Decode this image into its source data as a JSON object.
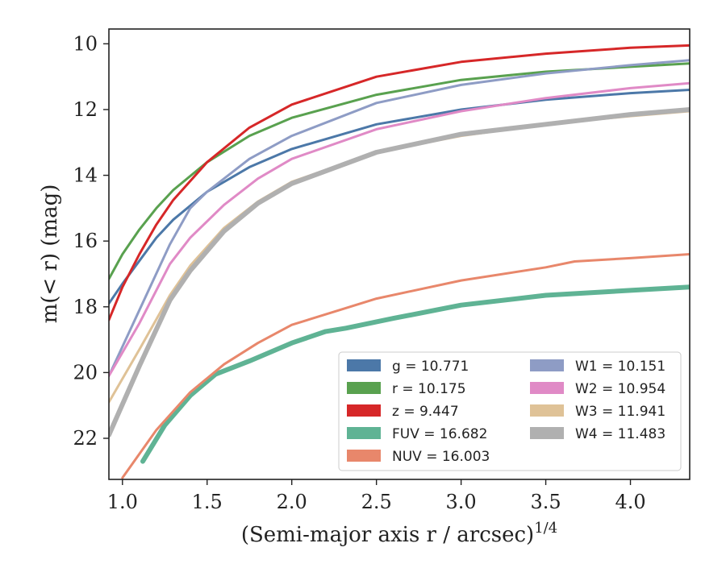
{
  "chart_data": {
    "type": "line",
    "xlabel": "(Semi-major axis r / arcsec)",
    "xlabel_superscript": "1/4",
    "ylabel": "m(< r) (mag)",
    "xlim": [
      0.92,
      4.35
    ],
    "ylim": [
      23.25,
      9.55
    ],
    "y_inverted": true,
    "grid": false,
    "legend_position": "lower-right",
    "x_ticks": [
      "1.0",
      "1.5",
      "2.0",
      "2.5",
      "3.0",
      "3.5",
      "4.0"
    ],
    "y_ticks": [
      "10",
      "12",
      "14",
      "16",
      "18",
      "20",
      "22"
    ],
    "series": [
      {
        "name": "g",
        "legend_label": "g = 10.771",
        "color": "#4c78a8",
        "x": [
          0.92,
          1.0,
          1.1,
          1.2,
          1.3,
          1.5,
          1.75,
          2.0,
          2.5,
          3.0,
          3.5,
          4.0,
          4.35
        ],
        "y": [
          17.9,
          17.3,
          16.6,
          15.9,
          15.35,
          14.5,
          13.75,
          13.2,
          12.45,
          12.0,
          11.7,
          11.5,
          11.4
        ]
      },
      {
        "name": "r",
        "legend_label": "r = 10.175",
        "color": "#59a14f",
        "x": [
          0.92,
          1.0,
          1.1,
          1.2,
          1.3,
          1.5,
          1.75,
          2.0,
          2.5,
          3.0,
          3.5,
          4.0,
          4.35
        ],
        "y": [
          17.15,
          16.4,
          15.65,
          15.0,
          14.45,
          13.6,
          12.8,
          12.25,
          11.55,
          11.1,
          10.85,
          10.7,
          10.6
        ]
      },
      {
        "name": "z",
        "legend_label": "z = 9.447",
        "color": "#d62728",
        "x": [
          0.92,
          1.0,
          1.1,
          1.2,
          1.3,
          1.5,
          1.75,
          2.0,
          2.5,
          3.0,
          3.5,
          4.0,
          4.35
        ],
        "y": [
          18.4,
          17.4,
          16.4,
          15.5,
          14.75,
          13.6,
          12.55,
          11.85,
          11.0,
          10.55,
          10.3,
          10.12,
          10.05
        ]
      },
      {
        "name": "FUV",
        "legend_label": "FUV = 16.682",
        "color": "#5fb394",
        "x": [
          1.12,
          1.25,
          1.4,
          1.55,
          1.75,
          2.0,
          2.2,
          2.32,
          2.6,
          3.0,
          3.5,
          4.0,
          4.35
        ],
        "y": [
          22.7,
          21.6,
          20.7,
          20.05,
          19.65,
          19.1,
          18.75,
          18.65,
          18.35,
          17.95,
          17.65,
          17.5,
          17.4
        ]
      },
      {
        "name": "NUV",
        "legend_label": "NUV = 16.003",
        "color": "#e8876b",
        "x": [
          1.0,
          1.2,
          1.4,
          1.6,
          1.8,
          2.0,
          2.5,
          3.0,
          3.5,
          3.67,
          4.0,
          4.35
        ],
        "y": [
          23.2,
          21.75,
          20.6,
          19.75,
          19.1,
          18.55,
          17.75,
          17.2,
          16.8,
          16.62,
          16.52,
          16.4
        ]
      },
      {
        "name": "W1",
        "legend_label": "W1 = 10.151",
        "color": "#8e9cc5",
        "x": [
          0.92,
          1.1,
          1.28,
          1.4,
          1.5,
          1.75,
          2.0,
          2.5,
          3.0,
          3.5,
          4.0,
          4.35
        ],
        "y": [
          20.1,
          18.1,
          16.1,
          15.0,
          14.5,
          13.5,
          12.8,
          11.8,
          11.25,
          10.9,
          10.65,
          10.5
        ]
      },
      {
        "name": "W2",
        "legend_label": "W2 = 10.954",
        "color": "#e08ac6",
        "x": [
          0.92,
          1.1,
          1.28,
          1.4,
          1.6,
          1.8,
          2.0,
          2.5,
          3.0,
          3.5,
          4.0,
          4.35
        ],
        "y": [
          20.1,
          18.5,
          16.7,
          15.9,
          14.9,
          14.1,
          13.5,
          12.6,
          12.05,
          11.65,
          11.35,
          11.2
        ]
      },
      {
        "name": "W3",
        "legend_label": "W3 = 11.941",
        "color": "#dfc297",
        "x": [
          0.92,
          1.1,
          1.28,
          1.4,
          1.6,
          1.8,
          2.0,
          2.5,
          3.0,
          3.5,
          4.0,
          4.35
        ],
        "y": [
          20.9,
          19.3,
          17.65,
          16.75,
          15.6,
          14.8,
          14.2,
          13.3,
          12.8,
          12.45,
          12.2,
          12.05
        ]
      },
      {
        "name": "W4",
        "legend_label": "W4 = 11.483",
        "color": "#b0b0b0",
        "x": [
          0.92,
          1.1,
          1.28,
          1.4,
          1.6,
          1.8,
          2.0,
          2.5,
          3.0,
          3.5,
          4.0,
          4.35
        ],
        "y": [
          21.9,
          19.8,
          17.8,
          16.9,
          15.7,
          14.85,
          14.25,
          13.3,
          12.75,
          12.45,
          12.15,
          12.0
        ]
      }
    ]
  }
}
